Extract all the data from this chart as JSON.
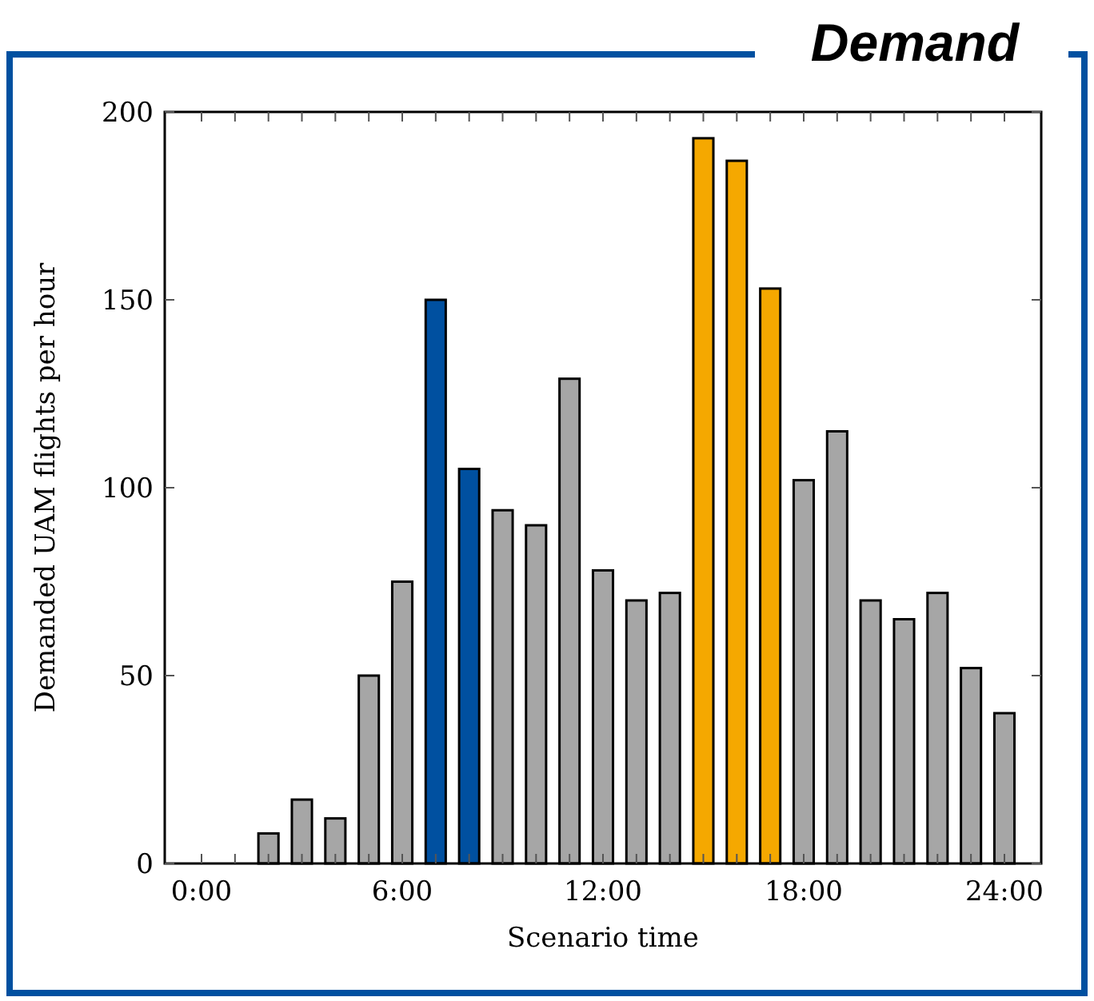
{
  "chart_data": {
    "type": "bar",
    "title": "Demand",
    "xlabel": "Scenario time",
    "ylabel": "Demanded UAM flights per hour",
    "x": [
      2,
      3,
      4,
      5,
      6,
      7,
      8,
      9,
      10,
      11,
      12,
      13,
      14,
      15,
      16,
      17,
      18,
      19,
      20,
      21,
      22,
      23,
      24
    ],
    "values": [
      8,
      17,
      12,
      50,
      75,
      150,
      105,
      94,
      90,
      129,
      78,
      70,
      72,
      193,
      187,
      153,
      102,
      115,
      70,
      65,
      72,
      52,
      40
    ],
    "colors": [
      "#a6a6a6",
      "#a6a6a6",
      "#a6a6a6",
      "#a6a6a6",
      "#a6a6a6",
      "#0050a0",
      "#0050a0",
      "#a6a6a6",
      "#a6a6a6",
      "#a6a6a6",
      "#a6a6a6",
      "#a6a6a6",
      "#a6a6a6",
      "#f5a800",
      "#f5a800",
      "#f5a800",
      "#a6a6a6",
      "#a6a6a6",
      "#a6a6a6",
      "#a6a6a6",
      "#a6a6a6",
      "#a6a6a6",
      "#a6a6a6"
    ],
    "xlim": [
      -1.1,
      25.1
    ],
    "xticks": [
      {
        "value": 0,
        "label": "0:00"
      },
      {
        "value": 1,
        "label": null
      },
      {
        "value": 2,
        "label": null
      },
      {
        "value": 3,
        "label": null
      },
      {
        "value": 4,
        "label": null
      },
      {
        "value": 5,
        "label": null
      },
      {
        "value": 6,
        "label": "6:00"
      },
      {
        "value": 7,
        "label": null
      },
      {
        "value": 8,
        "label": null
      },
      {
        "value": 9,
        "label": null
      },
      {
        "value": 10,
        "label": null
      },
      {
        "value": 11,
        "label": null
      },
      {
        "value": 12,
        "label": "12:00"
      },
      {
        "value": 13,
        "label": null
      },
      {
        "value": 14,
        "label": null
      },
      {
        "value": 15,
        "label": null
      },
      {
        "value": 16,
        "label": null
      },
      {
        "value": 17,
        "label": null
      },
      {
        "value": 18,
        "label": "18:00"
      },
      {
        "value": 19,
        "label": null
      },
      {
        "value": 20,
        "label": null
      },
      {
        "value": 21,
        "label": null
      },
      {
        "value": 22,
        "label": null
      },
      {
        "value": 23,
        "label": null
      },
      {
        "value": 24,
        "label": "24:00"
      }
    ],
    "ylim": [
      0,
      200
    ],
    "yticks": [
      0,
      50,
      100,
      150,
      200
    ],
    "grid": false
  }
}
